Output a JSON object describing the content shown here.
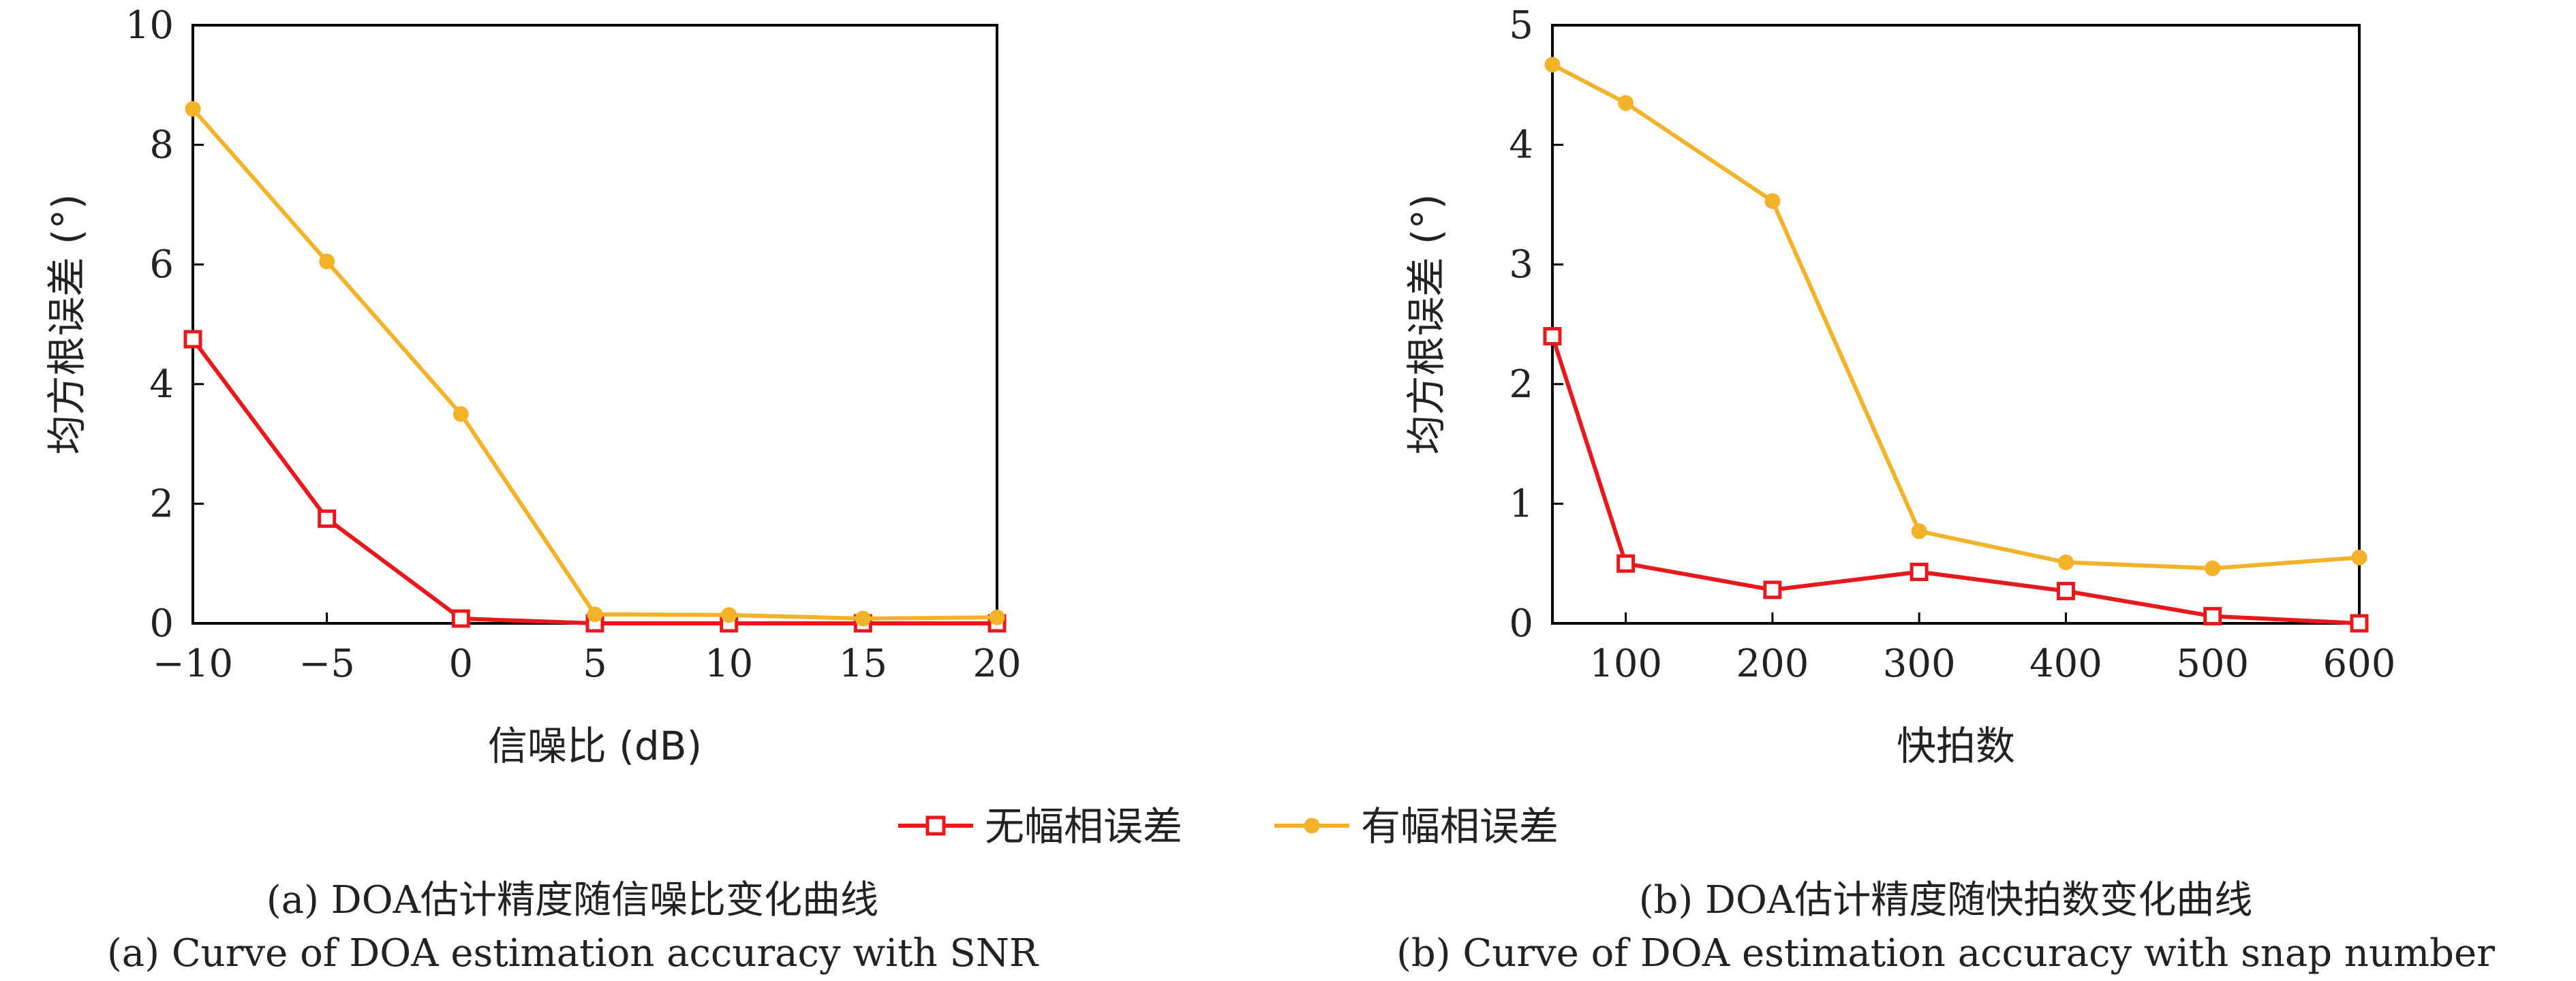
{
  "chart_data": [
    {
      "type": "line",
      "xlabel": "信噪比 (dB)",
      "ylabel": "均方根误差 (°)",
      "x": [
        -10,
        -5,
        0,
        5,
        10,
        15,
        20
      ],
      "xticks": [
        "−10",
        "−5",
        "0",
        "5",
        "10",
        "15",
        "20"
      ],
      "xlim": [
        -10,
        20
      ],
      "yticks": [
        "0",
        "2",
        "4",
        "6",
        "8",
        "10"
      ],
      "ylim": [
        0,
        10
      ],
      "series": [
        {
          "name": "无幅相误差",
          "values": [
            4.75,
            1.75,
            0.08,
            0.0,
            0.0,
            0.0,
            0.0
          ],
          "color": "#e8191c",
          "marker": "square"
        },
        {
          "name": "有幅相误差",
          "values": [
            8.6,
            6.05,
            3.5,
            0.15,
            0.14,
            0.08,
            0.1
          ],
          "color": "#f2b229",
          "marker": "dot"
        }
      ],
      "caption_cn": "(a) DOA估计精度随信噪比变化曲线",
      "caption_en": "(a) Curve of DOA estimation accuracy with SNR"
    },
    {
      "type": "line",
      "xlabel": "快拍数",
      "ylabel": "均方根误差 (°)",
      "x": [
        50,
        100,
        200,
        300,
        400,
        500,
        600
      ],
      "xticks": [
        "100",
        "200",
        "300",
        "400",
        "500",
        "600"
      ],
      "xtick_values": [
        100,
        200,
        300,
        400,
        500,
        600
      ],
      "xlim": [
        50,
        600
      ],
      "yticks": [
        "0",
        "1",
        "2",
        "3",
        "4",
        "5"
      ],
      "ylim": [
        0,
        5
      ],
      "series": [
        {
          "name": "无幅相误差",
          "values": [
            2.4,
            0.5,
            0.28,
            0.43,
            0.27,
            0.06,
            0.0
          ],
          "color": "#e8191c",
          "marker": "square"
        },
        {
          "name": "有幅相误差",
          "values": [
            4.67,
            4.35,
            3.53,
            0.77,
            0.51,
            0.46,
            0.55
          ],
          "color": "#f2b229",
          "marker": "dot"
        }
      ],
      "caption_cn": "(b) DOA估计精度随快拍数变化曲线",
      "caption_en": "(b) Curve of DOA estimation accuracy with snap number"
    }
  ],
  "legend": {
    "items": [
      {
        "label": "无幅相误差",
        "color": "#e8191c",
        "marker": "square"
      },
      {
        "label": "有幅相误差",
        "color": "#f2b229",
        "marker": "dot"
      }
    ],
    "placement": "bottom-center"
  }
}
